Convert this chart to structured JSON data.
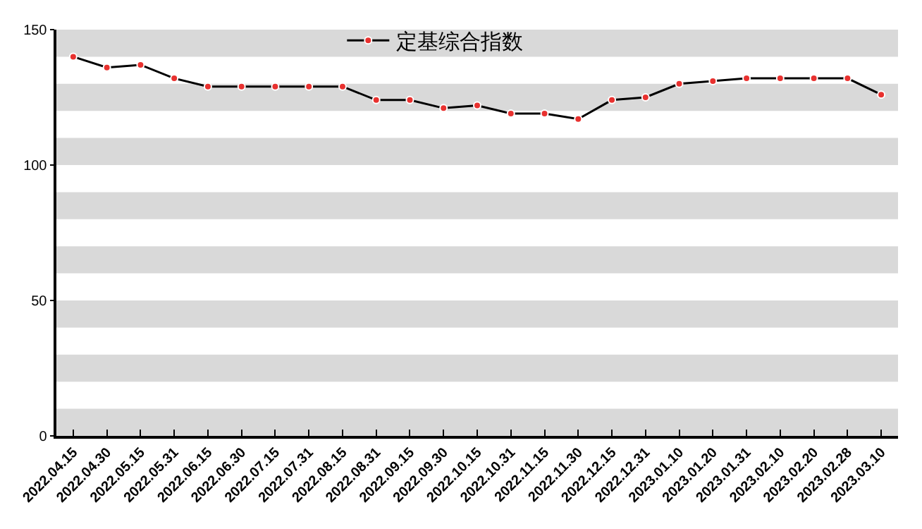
{
  "chart_data": {
    "type": "line",
    "categories": [
      "2022.04.15",
      "2022.04.30",
      "2022.05.15",
      "2022.05.31",
      "2022.06.15",
      "2022.06.30",
      "2022.07.15",
      "2022.07.31",
      "2022.08.15",
      "2022.08.31",
      "2022.09.15",
      "2022.09.30",
      "2022.10.15",
      "2022.10.31",
      "2022.11.15",
      "2022.11.30",
      "2022.12.15",
      "2022.12.31",
      "2023.01.10",
      "2023.01.20",
      "2023.01.31",
      "2023.02.10",
      "2023.02.20",
      "2023.02.28",
      "2023.03.10"
    ],
    "series": [
      {
        "name": "定基综合指数",
        "color": "#000000",
        "values": [
          140,
          136,
          137,
          132,
          129,
          129,
          129,
          129,
          129,
          124,
          124,
          121,
          122,
          119,
          119,
          117,
          124,
          125,
          130,
          131,
          132,
          132,
          132,
          132,
          126
        ]
      }
    ],
    "ylim": [
      0,
      150
    ],
    "yticks": [
      0,
      50,
      100,
      150
    ],
    "marker": "circle",
    "line_style": "solid",
    "legend": "top",
    "grid": false,
    "bands": [
      {
        "axis": "y",
        "from": 0,
        "to": 10,
        "color": "#d9d9d9"
      },
      {
        "axis": "y",
        "from": 20,
        "to": 30,
        "color": "#d9d9d9"
      },
      {
        "axis": "y",
        "from": 40,
        "to": 50,
        "color": "#d9d9d9"
      },
      {
        "axis": "y",
        "from": 60,
        "to": 70,
        "color": "#d9d9d9"
      },
      {
        "axis": "y",
        "from": 80,
        "to": 90,
        "color": "#d9d9d9"
      },
      {
        "axis": "y",
        "from": 100,
        "to": 110,
        "color": "#d9d9d9"
      },
      {
        "axis": "y",
        "from": 120,
        "to": 130,
        "color": "#d9d9d9"
      },
      {
        "axis": "y",
        "from": 140,
        "to": 150,
        "color": "#d9d9d9"
      }
    ]
  }
}
